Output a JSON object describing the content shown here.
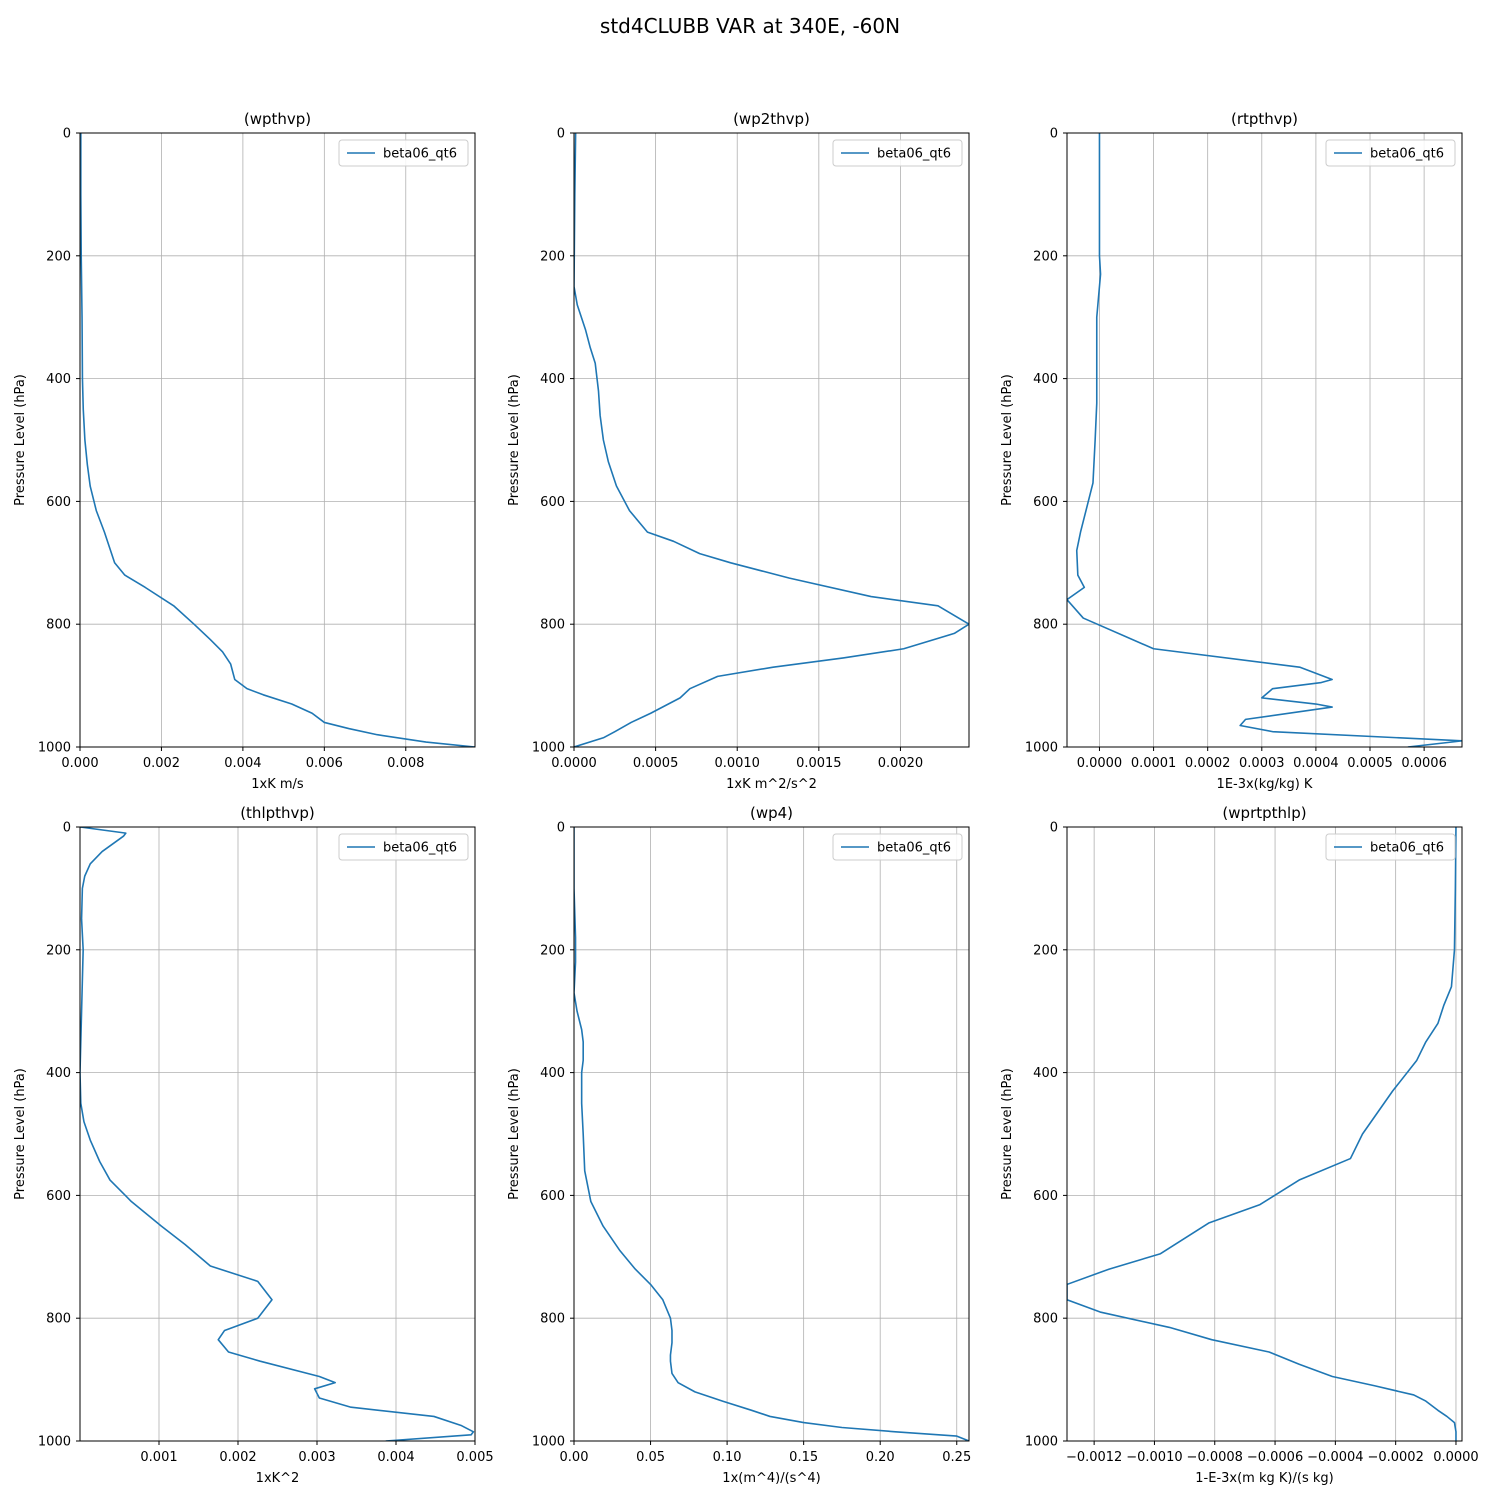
{
  "figure": {
    "title": "std4CLUBB VAR at 340E, -60N"
  },
  "colors": {
    "series": "#1f77b4",
    "grid": "#b0b0b0",
    "legend_border": "#cccccc"
  },
  "chart_data": [
    {
      "type": "line",
      "title": "(wpthvp)",
      "xlabel": "1xK m/s",
      "ylabel": "Pressure Level (hPa)",
      "xlim": [
        0.0,
        0.0097
      ],
      "ylim": [
        1000,
        0
      ],
      "xticks": [
        0.0,
        0.002,
        0.004,
        0.006,
        0.008
      ],
      "xtick_labels": [
        "0.000",
        "0.002",
        "0.004",
        "0.006",
        "0.008"
      ],
      "yticks": [
        0,
        200,
        400,
        600,
        800,
        1000
      ],
      "ytick_labels": [
        "0",
        "200",
        "400",
        "600",
        "800",
        "1000"
      ],
      "grid": true,
      "legend_position": "upper right",
      "series": [
        {
          "name": "beta06_qt6",
          "x": [
            2e-05,
            2e-05,
            3e-05,
            5e-05,
            6e-05,
            8e-05,
            0.00012,
            0.00018,
            0.00025,
            0.0004,
            0.0006,
            0.00075,
            0.00085,
            0.0011,
            0.0016,
            0.0023,
            0.0028,
            0.0032,
            0.0035,
            0.0037,
            0.0038,
            0.0041,
            0.0045,
            0.0052,
            0.0057,
            0.006,
            0.0066,
            0.0073,
            0.0085,
            0.0097
          ],
          "y": [
            0,
            100,
            200,
            300,
            400,
            450,
            500,
            540,
            575,
            615,
            650,
            680,
            700,
            720,
            740,
            770,
            800,
            825,
            845,
            865,
            890,
            905,
            915,
            930,
            945,
            960,
            970,
            980,
            992,
            1000
          ]
        }
      ]
    },
    {
      "type": "line",
      "title": "(wp2thvp)",
      "xlabel": "1xK m^2/s^2",
      "ylabel": "Pressure Level (hPa)",
      "xlim": [
        0.0,
        0.00242
      ],
      "ylim": [
        1000,
        0
      ],
      "xticks": [
        0.0,
        0.0005,
        0.001,
        0.0015,
        0.002
      ],
      "xtick_labels": [
        "0.0000",
        "0.0005",
        "0.0010",
        "0.0015",
        "0.0020"
      ],
      "yticks": [
        0,
        200,
        400,
        600,
        800,
        1000
      ],
      "ytick_labels": [
        "0",
        "200",
        "400",
        "600",
        "800",
        "1000"
      ],
      "grid": true,
      "legend_position": "upper right",
      "series": [
        {
          "name": "beta06_qt6",
          "x": [
            1e-05,
            5e-06,
            0.0,
            2e-05,
            7e-05,
            0.0001,
            0.00013,
            0.00015,
            0.00016,
            0.00018,
            0.00021,
            0.00026,
            0.00034,
            0.00045,
            0.00061,
            0.00077,
            0.00096,
            0.00132,
            0.00182,
            0.00223,
            0.00242,
            0.00233,
            0.00202,
            0.00165,
            0.00122,
            0.00088,
            0.00071,
            0.00065,
            0.00047,
            0.00035,
            0.00025,
            0.00018,
            0.0
          ],
          "y": [
            0,
            100,
            250,
            280,
            320,
            350,
            375,
            420,
            460,
            500,
            535,
            575,
            615,
            650,
            665,
            685,
            700,
            725,
            755,
            770,
            800,
            815,
            840,
            855,
            870,
            885,
            905,
            920,
            945,
            960,
            975,
            985,
            1000
          ]
        }
      ]
    },
    {
      "type": "line",
      "title": "(rtpthvp)",
      "xlabel": "1E-3x(kg/kg) K",
      "ylabel": "Pressure Level (hPa)",
      "xlim": [
        -6e-05,
        0.00067
      ],
      "ylim": [
        1000,
        0
      ],
      "xticks": [
        0.0,
        0.0001,
        0.0002,
        0.0003,
        0.0004,
        0.0005,
        0.0006
      ],
      "xtick_labels": [
        "0.0000",
        "0.0001",
        "0.0002",
        "0.0003",
        "0.0004",
        "0.0005",
        "0.0006"
      ],
      "yticks": [
        0,
        200,
        400,
        600,
        800,
        1000
      ],
      "ytick_labels": [
        "0",
        "200",
        "400",
        "600",
        "800",
        "1000"
      ],
      "grid": true,
      "legend_position": "upper right",
      "series": [
        {
          "name": "beta06_qt6",
          "x": [
            0.0,
            0.0,
            2e-06,
            -5e-06,
            -5e-06,
            -8e-06,
            -1.2e-05,
            -3.5e-05,
            -4.2e-05,
            -4e-05,
            -2.8e-05,
            -6e-05,
            -3e-05,
            0.0001,
            0.00037,
            0.00043,
            0.00041,
            0.00032,
            0.0003,
            0.0004,
            0.00043,
            0.00027,
            0.00026,
            0.00032,
            0.00067,
            0.00057
          ],
          "y": [
            0,
            200,
            230,
            300,
            440,
            500,
            570,
            650,
            680,
            720,
            740,
            760,
            790,
            840,
            870,
            890,
            895,
            905,
            920,
            930,
            935,
            955,
            965,
            975,
            990,
            1000
          ]
        }
      ]
    },
    {
      "type": "line",
      "title": "(thlpthvp)",
      "xlabel": "1xK^2",
      "ylabel": "Pressure Level (hPa)",
      "xlim": [
        0.0,
        0.005
      ],
      "ylim": [
        1000,
        0
      ],
      "xticks": [
        0.001,
        0.002,
        0.003,
        0.004,
        0.005
      ],
      "xtick_labels": [
        "0.001",
        "0.002",
        "0.003",
        "0.004",
        "0.005"
      ],
      "yticks": [
        0,
        200,
        400,
        600,
        800,
        1000
      ],
      "ytick_labels": [
        "0",
        "200",
        "400",
        "600",
        "800",
        "1000"
      ],
      "grid": true,
      "legend_position": "upper right",
      "series": [
        {
          "name": "beta06_qt6",
          "x": [
            0.0,
            0.00058,
            0.00055,
            0.00028,
            0.00013,
            6e-05,
            3e-05,
            2e-05,
            4e-05,
            2e-05,
            0.0,
            1e-05,
            5e-05,
            0.00013,
            0.00025,
            0.00038,
            0.00065,
            0.00103,
            0.00133,
            0.00165,
            0.00225,
            0.00243,
            0.00225,
            0.00183,
            0.00175,
            0.00188,
            0.00228,
            0.00303,
            0.00323,
            0.00297,
            0.00303,
            0.00343,
            0.00448,
            0.00483,
            0.00498,
            0.00495,
            0.00387
          ],
          "y": [
            0,
            10,
            15,
            40,
            60,
            80,
            100,
            150,
            200,
            300,
            400,
            450,
            480,
            510,
            545,
            575,
            610,
            650,
            680,
            715,
            740,
            770,
            800,
            820,
            835,
            855,
            870,
            895,
            905,
            915,
            930,
            945,
            960,
            975,
            985,
            990,
            1000
          ]
        }
      ]
    },
    {
      "type": "line",
      "title": "(wp4)",
      "xlabel": "1x(m^4)/(s^4)",
      "ylabel": "Pressure Level (hPa)",
      "xlim": [
        0.0,
        0.258
      ],
      "ylim": [
        1000,
        0
      ],
      "xticks": [
        0.0,
        0.05,
        0.1,
        0.15,
        0.2,
        0.25
      ],
      "xtick_labels": [
        "0.00",
        "0.05",
        "0.10",
        "0.15",
        "0.20",
        "0.25"
      ],
      "yticks": [
        0,
        200,
        400,
        600,
        800,
        1000
      ],
      "ytick_labels": [
        "0",
        "200",
        "400",
        "600",
        "800",
        "1000"
      ],
      "grid": true,
      "legend_position": "upper right",
      "series": [
        {
          "name": "beta06_qt6",
          "x": [
            0.0,
            0.0,
            0.001,
            0.001,
            0.0,
            0.002,
            0.005,
            0.006,
            0.006,
            0.005,
            0.005,
            0.006,
            0.007,
            0.011,
            0.019,
            0.03,
            0.04,
            0.05,
            0.058,
            0.063,
            0.064,
            0.064,
            0.063,
            0.063,
            0.064,
            0.068,
            0.079,
            0.097,
            0.116,
            0.128,
            0.15,
            0.175,
            0.21,
            0.25,
            0.258
          ],
          "y": [
            0,
            100,
            180,
            220,
            270,
            300,
            330,
            350,
            380,
            400,
            450,
            500,
            560,
            610,
            650,
            690,
            720,
            745,
            770,
            800,
            820,
            840,
            860,
            870,
            890,
            905,
            920,
            935,
            950,
            960,
            970,
            978,
            985,
            992,
            1000
          ]
        }
      ]
    },
    {
      "type": "line",
      "title": "(wprtpthlp)",
      "xlabel": "1-E-3x(m kg K)/(s kg)",
      "ylabel": "Pressure Level (hPa)",
      "xlim": [
        -0.00129,
        2e-05
      ],
      "ylim": [
        1000,
        0
      ],
      "xticks": [
        -0.0012,
        -0.001,
        -0.0008,
        -0.0006,
        -0.0004,
        -0.0002,
        0.0
      ],
      "xtick_labels": [
        "−0.0012",
        "−0.0010",
        "−0.0008",
        "−0.0006",
        "−0.0004",
        "−0.0002",
        "0.0000"
      ],
      "yticks": [
        0,
        200,
        400,
        600,
        800,
        1000
      ],
      "ytick_labels": [
        "0",
        "200",
        "400",
        "600",
        "800",
        "1000"
      ],
      "grid": true,
      "legend_position": "upper right",
      "series": [
        {
          "name": "beta06_qt6",
          "x": [
            0.0,
            -2e-06,
            -5e-06,
            -1.5e-05,
            -4e-05,
            -6e-05,
            -0.0001,
            -0.00013,
            -0.00021,
            -0.00031,
            -0.00035,
            -0.00052,
            -0.00065,
            -0.00082,
            -0.00098,
            -0.00115,
            -0.00129,
            -0.00129,
            -0.00118,
            -0.00095,
            -0.00081,
            -0.00062,
            -0.00052,
            -0.00041,
            -0.00027,
            -0.00014,
            -0.0001,
            -6e-05,
            -3e-05,
            -5e-06,
            0.0,
            0.0
          ],
          "y": [
            0,
            100,
            200,
            260,
            290,
            320,
            350,
            380,
            430,
            500,
            540,
            575,
            615,
            645,
            695,
            720,
            745,
            770,
            790,
            815,
            835,
            855,
            875,
            895,
            910,
            925,
            935,
            950,
            960,
            970,
            985,
            1000
          ]
        }
      ]
    }
  ]
}
